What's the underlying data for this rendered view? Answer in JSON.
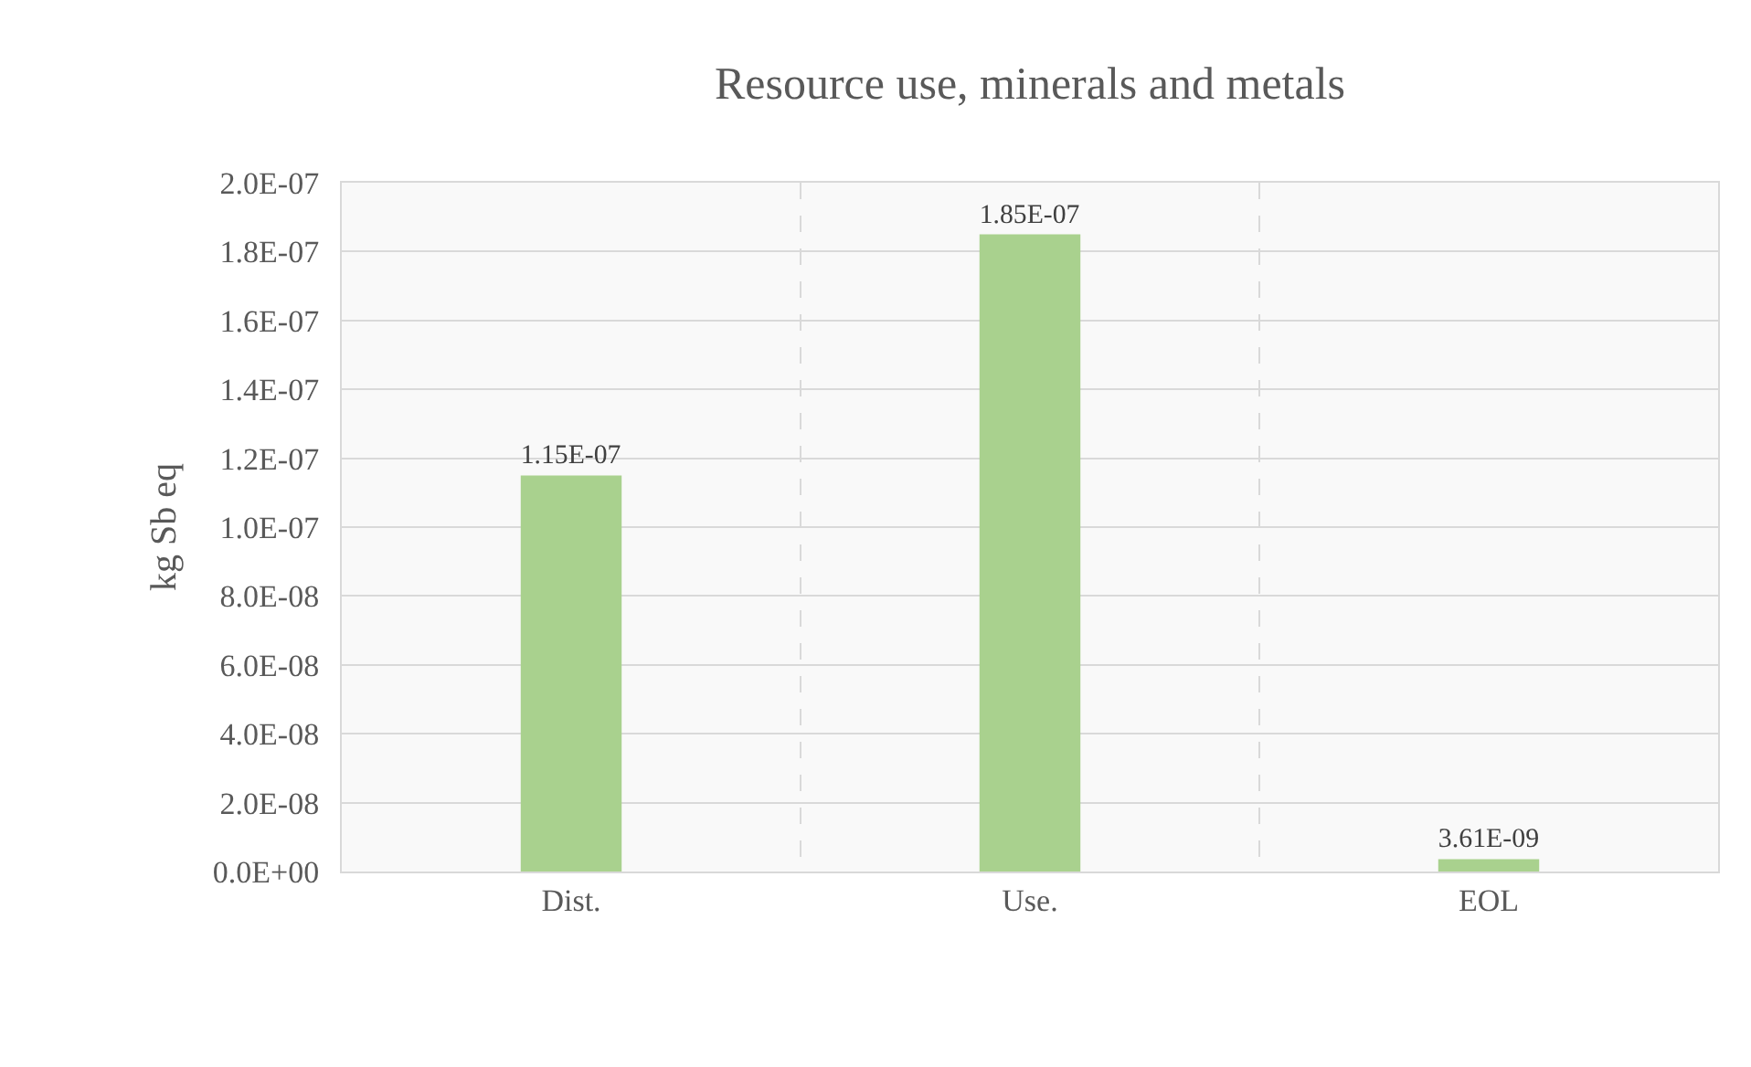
{
  "chart_data": {
    "type": "bar",
    "title": "Resource use, minerals and metals",
    "ylabel": "kg Sb eq",
    "categories": [
      "Dist.",
      "Use.",
      "EOL"
    ],
    "values": [
      1.15e-07,
      1.85e-07,
      3.61e-09
    ],
    "value_labels": [
      "1.15E-07",
      "1.85E-07",
      "3.61E-09"
    ],
    "color": "#a9d18e",
    "ylim": [
      0,
      2e-07
    ],
    "yticks": [
      {
        "value": 0,
        "label": "0.0E+00"
      },
      {
        "value": 2e-08,
        "label": "2.0E-08"
      },
      {
        "value": 4e-08,
        "label": "4.0E-08"
      },
      {
        "value": 6e-08,
        "label": "6.0E-08"
      },
      {
        "value": 8e-08,
        "label": "8.0E-08"
      },
      {
        "value": 1e-07,
        "label": "1.0E-07"
      },
      {
        "value": 1.2e-07,
        "label": "1.2E-07"
      },
      {
        "value": 1.4e-07,
        "label": "1.4E-07"
      },
      {
        "value": 1.6e-07,
        "label": "1.6E-07"
      },
      {
        "value": 1.8e-07,
        "label": "1.8E-07"
      },
      {
        "value": 2e-07,
        "label": "2.0E-07"
      }
    ],
    "grid": true
  }
}
